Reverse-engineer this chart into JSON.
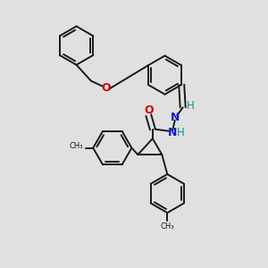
{
  "bg_color": "#e0e0e0",
  "bond_color": "#1a1a1a",
  "bond_lw": 1.4,
  "dbo": 0.012,
  "fs": 8.5,
  "O_color": "#cc0000",
  "N_color": "#1a1acc",
  "H_color": "#009999",
  "C_color": "#1a1a1a",
  "fig_w": 3.0,
  "fig_h": 3.0,
  "xlim": [
    0,
    1
  ],
  "ylim": [
    0,
    1
  ]
}
